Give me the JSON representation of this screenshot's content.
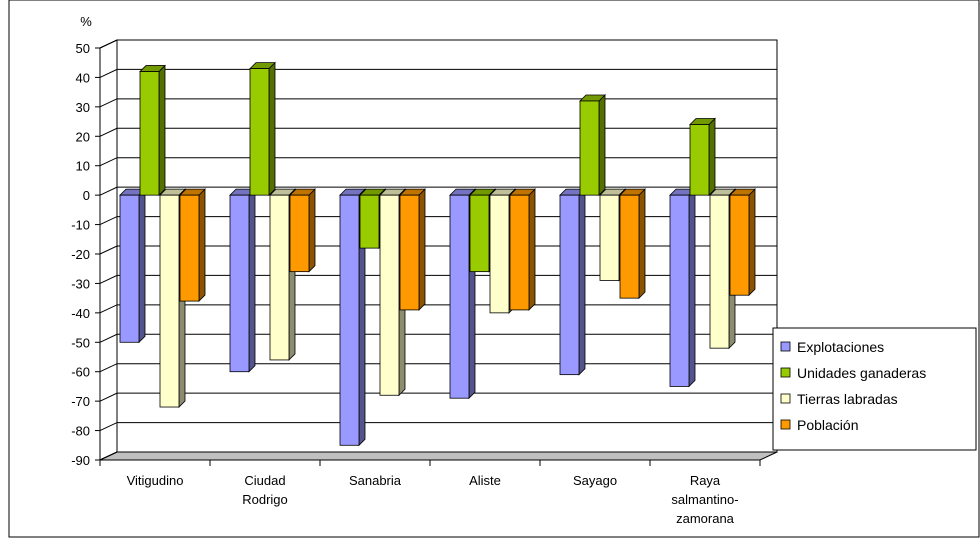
{
  "chart_data": {
    "type": "bar",
    "title": "",
    "xlabel": "",
    "ylabel": "%",
    "ylim": [
      -90,
      50
    ],
    "ytick_step": 10,
    "grid": true,
    "legend_position": "right",
    "categories": [
      "Vitigudino",
      "Ciudad Rodrigo",
      "Sanabria",
      "Aliste",
      "Sayago",
      "Raya salmantino-zamorana"
    ],
    "category_label_lines": [
      [
        "Vitigudino"
      ],
      [
        "Ciudad",
        "Rodrigo"
      ],
      [
        "Sanabria"
      ],
      [
        "Aliste"
      ],
      [
        "Sayago"
      ],
      [
        "Raya",
        "salmantino-",
        "zamorana"
      ]
    ],
    "series": [
      {
        "name": "Explotaciones",
        "color": "#9999ff",
        "values": [
          -50,
          -60,
          -85,
          -69,
          -61,
          -65
        ]
      },
      {
        "name": "Unidades ganaderas",
        "color": "#99cc00",
        "values": [
          42,
          43,
          -18,
          -26,
          32,
          24
        ]
      },
      {
        "name": "Tierras labradas",
        "color": "#ffffcc",
        "values": [
          -72,
          -56,
          -68,
          -40,
          -29,
          -52
        ]
      },
      {
        "name": "Población",
        "color": "#ff9900",
        "values": [
          -36,
          -26,
          -39,
          -39,
          -35,
          -34
        ]
      }
    ]
  }
}
